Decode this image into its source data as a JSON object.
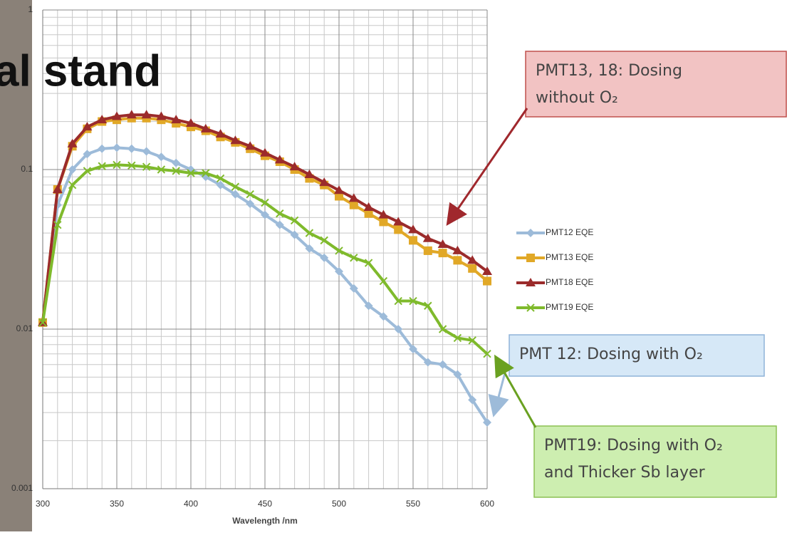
{
  "chart_data": {
    "type": "line",
    "title": "al stand",
    "x_label": "Wavelength /nm",
    "x": [
      300,
      310,
      320,
      330,
      340,
      350,
      360,
      370,
      380,
      390,
      400,
      410,
      420,
      430,
      440,
      450,
      460,
      470,
      480,
      490,
      500,
      510,
      520,
      530,
      540,
      550,
      560,
      570,
      580,
      590,
      600
    ],
    "xlim": [
      300,
      600
    ],
    "xticks": [
      300,
      350,
      400,
      450,
      500,
      550,
      600
    ],
    "ylim": [
      0.001,
      1
    ],
    "yticks": [
      1,
      0.1,
      0.01,
      0.001
    ],
    "log_y": true,
    "grid": true,
    "legend": "right",
    "series": [
      {
        "name": "PMT12 EQE",
        "color": "#9dbbd9",
        "marker": "diamond",
        "values": [
          0.011,
          0.06,
          0.1,
          0.125,
          0.135,
          0.137,
          0.135,
          0.13,
          0.12,
          0.11,
          0.1,
          0.09,
          0.08,
          0.07,
          0.061,
          0.052,
          0.045,
          0.039,
          0.032,
          0.028,
          0.023,
          0.018,
          0.014,
          0.012,
          0.01,
          0.0075,
          0.0062,
          0.006,
          0.0052,
          0.0036,
          0.0026
        ]
      },
      {
        "name": "PMT13 EQE",
        "color": "#e1a827",
        "marker": "square",
        "values": [
          0.011,
          0.075,
          0.14,
          0.18,
          0.2,
          0.205,
          0.21,
          0.21,
          0.205,
          0.195,
          0.185,
          0.175,
          0.16,
          0.148,
          0.135,
          0.122,
          0.112,
          0.1,
          0.088,
          0.08,
          0.068,
          0.06,
          0.053,
          0.047,
          0.042,
          0.036,
          0.031,
          0.03,
          0.027,
          0.024,
          0.02
        ]
      },
      {
        "name": "PMT18 EQE",
        "color": "#9b2b2b",
        "marker": "triangle",
        "values": [
          0.011,
          0.075,
          0.145,
          0.185,
          0.205,
          0.215,
          0.22,
          0.22,
          0.215,
          0.205,
          0.195,
          0.18,
          0.167,
          0.152,
          0.14,
          0.127,
          0.115,
          0.104,
          0.093,
          0.083,
          0.074,
          0.066,
          0.058,
          0.052,
          0.047,
          0.042,
          0.037,
          0.034,
          0.031,
          0.027,
          0.023
        ]
      },
      {
        "name": "PMT19 EQE",
        "color": "#7fba2c",
        "marker": "cross",
        "values": [
          0.011,
          0.045,
          0.08,
          0.098,
          0.105,
          0.107,
          0.106,
          0.104,
          0.1,
          0.098,
          0.095,
          0.095,
          0.088,
          0.078,
          0.07,
          0.062,
          0.053,
          0.048,
          0.04,
          0.036,
          0.031,
          0.028,
          0.026,
          0.02,
          0.015,
          0.015,
          0.014,
          0.01,
          0.0088,
          0.0085,
          0.007
        ]
      }
    ],
    "annotations": [
      {
        "lines": [
          "PMT13, 18: Dosing",
          "without O₂"
        ],
        "color": "#f2c3c3",
        "border": "#c0504d",
        "arrow": "#a0282d"
      },
      {
        "lines": [
          "PMT 12: Dosing with O₂"
        ],
        "color": "#d6e8f7",
        "border": "#8fb3d9",
        "arrow": "#9dbbd9"
      },
      {
        "lines": [
          "PMT19: Dosing with O₂",
          "and Thicker Sb layer"
        ],
        "color": "#cdeeb0",
        "border": "#8cc152",
        "arrow": "#6aa121"
      }
    ]
  }
}
